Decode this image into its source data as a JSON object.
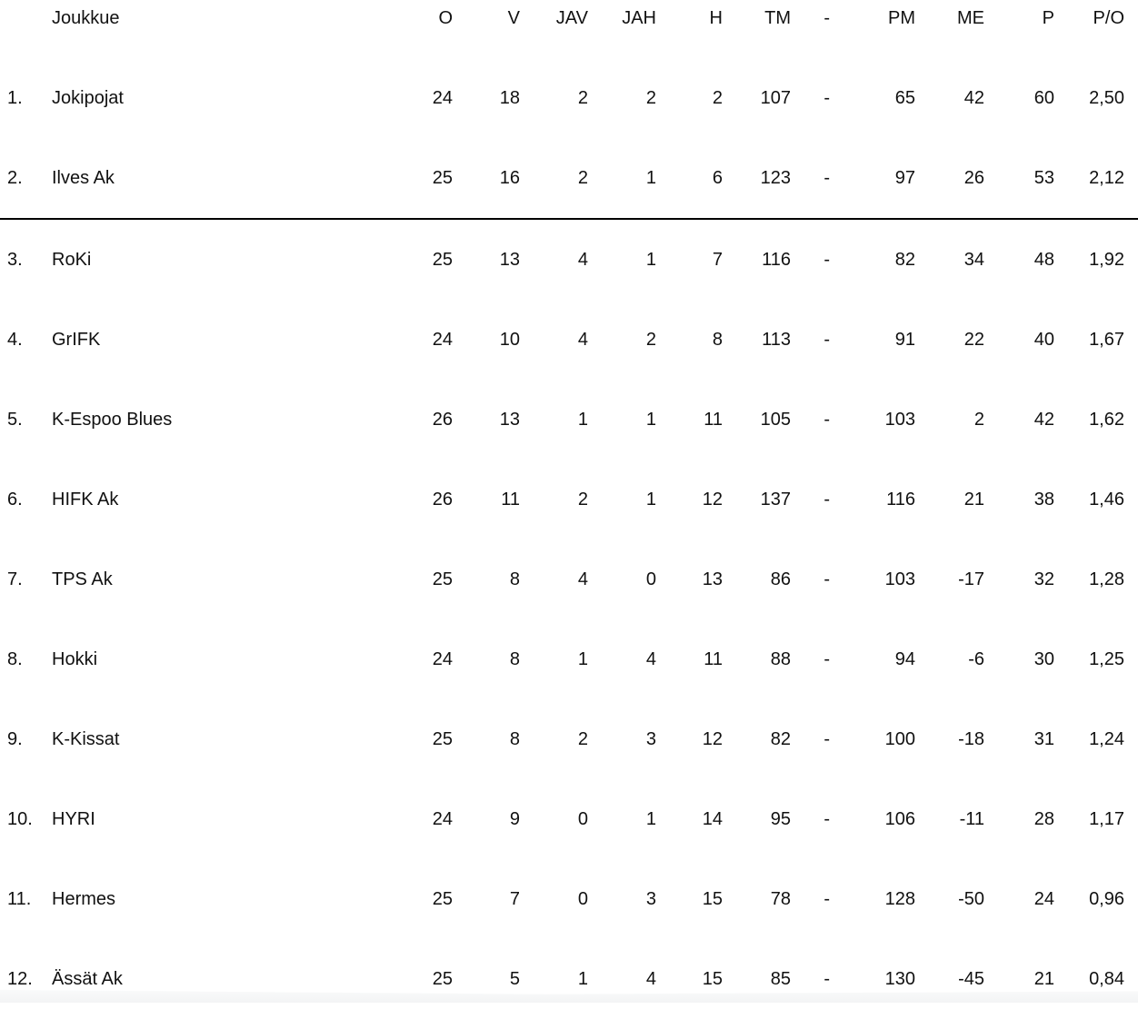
{
  "standings": {
    "columns": [
      {
        "key": "joukkue",
        "label": "Joukkue"
      },
      {
        "key": "o",
        "label": "O"
      },
      {
        "key": "v",
        "label": "V"
      },
      {
        "key": "jav",
        "label": "JAV"
      },
      {
        "key": "jah",
        "label": "JAH"
      },
      {
        "key": "h",
        "label": "H"
      },
      {
        "key": "tm",
        "label": "TM"
      },
      {
        "key": "dash",
        "label": "-"
      },
      {
        "key": "pm",
        "label": "PM"
      },
      {
        "key": "me",
        "label": "ME"
      },
      {
        "key": "p",
        "label": "P"
      },
      {
        "key": "po",
        "label": "P/O"
      }
    ],
    "promotion_divider_after_row": 2,
    "rows": [
      {
        "rank": "1.",
        "team": "Jokipojat",
        "values": [
          "24",
          "18",
          "2",
          "2",
          "2",
          "107",
          "-",
          "65",
          "42",
          "60",
          "2,50"
        ]
      },
      {
        "rank": "2.",
        "team": "Ilves Ak",
        "values": [
          "25",
          "16",
          "2",
          "1",
          "6",
          "123",
          "-",
          "97",
          "26",
          "53",
          "2,12"
        ]
      },
      {
        "rank": "3.",
        "team": "RoKi",
        "values": [
          "25",
          "13",
          "4",
          "1",
          "7",
          "116",
          "-",
          "82",
          "34",
          "48",
          "1,92"
        ]
      },
      {
        "rank": "4.",
        "team": "GrIFK",
        "values": [
          "24",
          "10",
          "4",
          "2",
          "8",
          "113",
          "-",
          "91",
          "22",
          "40",
          "1,67"
        ]
      },
      {
        "rank": "5.",
        "team": "K-Espoo Blues",
        "values": [
          "26",
          "13",
          "1",
          "1",
          "11",
          "105",
          "-",
          "103",
          "2",
          "42",
          "1,62"
        ]
      },
      {
        "rank": "6.",
        "team": "HIFK Ak",
        "values": [
          "26",
          "11",
          "2",
          "1",
          "12",
          "137",
          "-",
          "116",
          "21",
          "38",
          "1,46"
        ]
      },
      {
        "rank": "7.",
        "team": "TPS Ak",
        "values": [
          "25",
          "8",
          "4",
          "0",
          "13",
          "86",
          "-",
          "103",
          "-17",
          "32",
          "1,28"
        ]
      },
      {
        "rank": "8.",
        "team": "Hokki",
        "values": [
          "24",
          "8",
          "1",
          "4",
          "11",
          "88",
          "-",
          "94",
          "-6",
          "30",
          "1,25"
        ]
      },
      {
        "rank": "9.",
        "team": "K-Kissat",
        "values": [
          "25",
          "8",
          "2",
          "3",
          "12",
          "82",
          "-",
          "100",
          "-18",
          "31",
          "1,24"
        ]
      },
      {
        "rank": "10.",
        "team": "HYRI",
        "values": [
          "24",
          "9",
          "0",
          "1",
          "14",
          "95",
          "-",
          "106",
          "-11",
          "28",
          "1,17"
        ]
      },
      {
        "rank": "11.",
        "team": "Hermes",
        "values": [
          "25",
          "7",
          "0",
          "3",
          "15",
          "78",
          "-",
          "128",
          "-50",
          "24",
          "0,96"
        ]
      },
      {
        "rank": "12.",
        "team": "Ässät Ak",
        "values": [
          "25",
          "5",
          "1",
          "4",
          "15",
          "85",
          "-",
          "130",
          "-45",
          "21",
          "0,84"
        ]
      }
    ]
  },
  "colors": {
    "text": "#111111",
    "divider": "#000000",
    "background": "#ffffff",
    "bottom_band": "#f3f4f5"
  }
}
